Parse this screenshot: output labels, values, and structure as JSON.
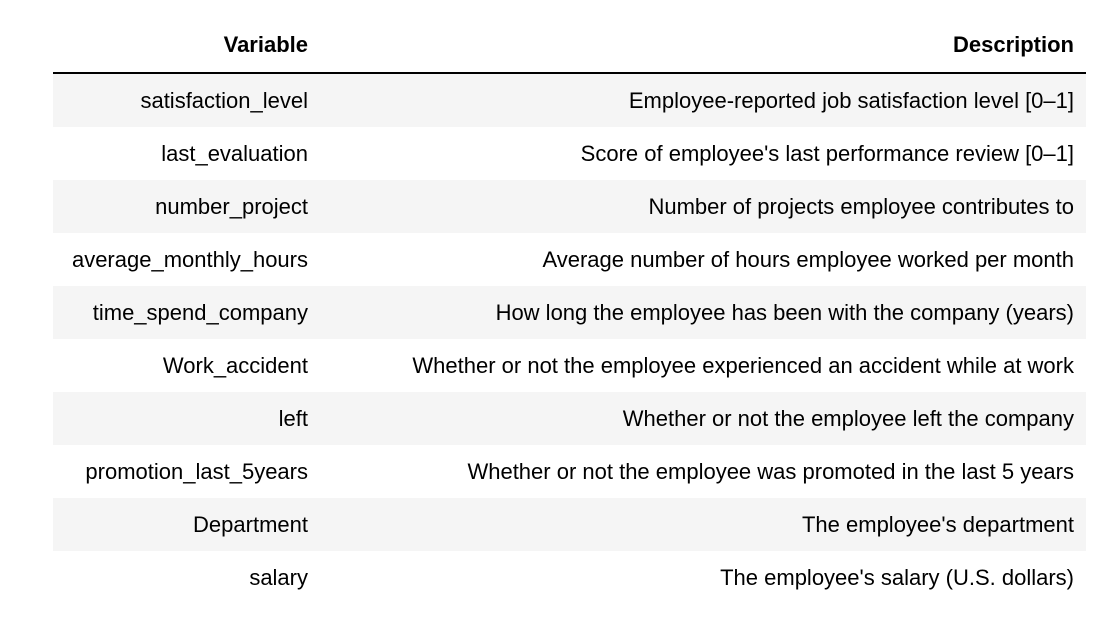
{
  "table": {
    "headers": {
      "variable": "Variable",
      "description": "Description"
    },
    "rows": [
      {
        "variable": "satisfaction_level",
        "description": "Employee-reported job satisfaction level [0–1]"
      },
      {
        "variable": "last_evaluation",
        "description": "Score of employee's last performance review [0–1]"
      },
      {
        "variable": "number_project",
        "description": "Number of projects employee contributes to"
      },
      {
        "variable": "average_monthly_hours",
        "description": "Average number of hours employee worked per month"
      },
      {
        "variable": "time_spend_company",
        "description": "How long the employee has been with the company (years)"
      },
      {
        "variable": "Work_accident",
        "description": "Whether or not the employee experienced an accident while at work"
      },
      {
        "variable": "left",
        "description": "Whether or not the employee left the company"
      },
      {
        "variable": "promotion_last_5years",
        "description": "Whether or not the employee was promoted in the last 5 years"
      },
      {
        "variable": "Department",
        "description": "The employee's department"
      },
      {
        "variable": "salary",
        "description": "The employee's salary (U.S. dollars)"
      }
    ]
  }
}
